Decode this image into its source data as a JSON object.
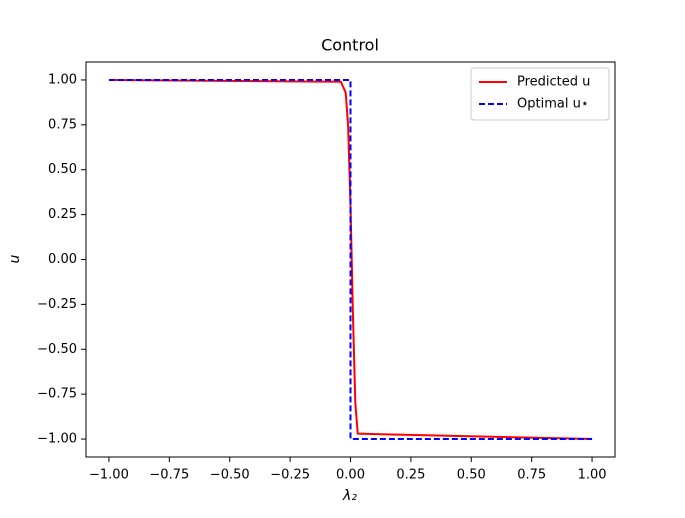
{
  "chart_data": {
    "type": "line",
    "title": "Control",
    "xlabel": "λ₂",
    "ylabel": "u",
    "xlim": [
      -1.095,
      1.095
    ],
    "ylim": [
      -1.1,
      1.1
    ],
    "xticks": [
      {
        "value": -1,
        "label": "−1.00"
      },
      {
        "value": -0.75,
        "label": "−0.75"
      },
      {
        "value": -0.5,
        "label": "−0.50"
      },
      {
        "value": -0.25,
        "label": "−0.25"
      },
      {
        "value": 0,
        "label": "0.00"
      },
      {
        "value": 0.25,
        "label": "0.25"
      },
      {
        "value": 0.5,
        "label": "0.50"
      },
      {
        "value": 0.75,
        "label": "0.75"
      },
      {
        "value": 1,
        "label": "1.00"
      }
    ],
    "yticks": [
      {
        "value": 1,
        "label": "1.00"
      },
      {
        "value": 0.75,
        "label": "0.75"
      },
      {
        "value": 0.5,
        "label": "0.50"
      },
      {
        "value": 0.25,
        "label": "0.25"
      },
      {
        "value": 0,
        "label": "0.00"
      },
      {
        "value": -0.25,
        "label": "−0.25"
      },
      {
        "value": -0.5,
        "label": "−0.50"
      },
      {
        "value": -0.75,
        "label": "−0.75"
      },
      {
        "value": -1,
        "label": "−1.00"
      }
    ],
    "legend": "upper right",
    "series": [
      {
        "name": "Predicted u",
        "color": "#ff0000",
        "dash": false,
        "x": [
          -1,
          -0.04,
          -0.02,
          -0.01,
          0,
          0.005,
          0.01,
          0.02,
          0.03,
          1
        ],
        "values": [
          1,
          0.99,
          0.93,
          0.75,
          0.3,
          0,
          -0.3,
          -0.8,
          -0.97,
          -1
        ]
      },
      {
        "name": "Optimal u⋆",
        "color": "#0000ff",
        "dash": true,
        "x": [
          -1,
          0,
          0,
          1
        ],
        "values": [
          1,
          1,
          -1,
          -1
        ]
      }
    ]
  }
}
